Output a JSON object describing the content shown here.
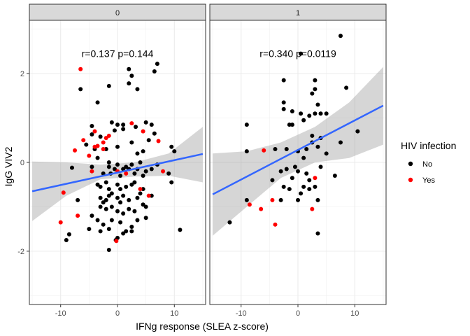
{
  "chart_data": {
    "type": "scatter",
    "xlabel": "IFNg response (SLEA z-score)",
    "ylabel": "IgG VIV2",
    "xlim": [
      -15.5,
      15.5
    ],
    "ylim": [
      -3.2,
      3.2
    ],
    "x_ticks": [
      -10,
      0,
      10
    ],
    "y_ticks": [
      -2,
      0,
      2
    ],
    "x_tick_labels": [
      "-10",
      "0",
      "10"
    ],
    "y_tick_labels": [
      "-2",
      "0",
      "2"
    ],
    "grid": true,
    "legend": {
      "title": "HIV infection",
      "position": "right",
      "entries": [
        {
          "label": "No",
          "color": "#000000"
        },
        {
          "label": "Yes",
          "color": "#ff0000"
        }
      ]
    },
    "panels": [
      {
        "strip": "0",
        "annotation": "r=0.137 p=0.144",
        "annotation_pos": [
          0,
          2.45
        ],
        "fit": {
          "x": [
            -15,
            15
          ],
          "y": [
            -0.65,
            0.19
          ]
        },
        "band_upper": [
          0.02,
          0.0,
          -0.05,
          0.0,
          0.2,
          0.8
        ],
        "band_lower": [
          -1.32,
          -0.75,
          -0.38,
          -0.32,
          -0.3,
          -0.45
        ],
        "band_x": [
          -15,
          -9,
          -3,
          3,
          9,
          15
        ],
        "no": [
          [
            -6.5,
            1.65
          ],
          [
            -3.5,
            1.35
          ],
          [
            -1.5,
            1.72
          ],
          [
            2,
            2.1
          ],
          [
            2,
            1.78
          ],
          [
            2.5,
            1.95
          ],
          [
            3.5,
            1.65
          ],
          [
            6.5,
            2.05
          ],
          [
            7,
            2.22
          ],
          [
            -4.5,
            0.82
          ],
          [
            -4.5,
            0.63
          ],
          [
            -3,
            0.58
          ],
          [
            0,
            0.85
          ],
          [
            -1,
            0.9
          ],
          [
            -0.5,
            0.72
          ],
          [
            1,
            0.85
          ],
          [
            1,
            0.75
          ],
          [
            3.2,
            0.8
          ],
          [
            5,
            0.9
          ],
          [
            6,
            0.85
          ],
          [
            6.5,
            0.65
          ],
          [
            -8,
            -0.12
          ],
          [
            -5.5,
            0.4
          ],
          [
            -4,
            0.3
          ],
          [
            -3.5,
            0.1
          ],
          [
            -2,
            0.3
          ],
          [
            -1.5,
            0.0
          ],
          [
            0,
            0.35
          ],
          [
            2.5,
            0.45
          ],
          [
            3.5,
            0.2
          ],
          [
            4.5,
            0.25
          ],
          [
            5.5,
            0.5
          ],
          [
            9.5,
            0.35
          ],
          [
            10,
            0.25
          ],
          [
            -4.5,
            -0.1
          ],
          [
            -2.5,
            -0.25
          ],
          [
            -1.5,
            -0.1
          ],
          [
            -1.2,
            -0.25
          ],
          [
            -0.5,
            -0.15
          ],
          [
            0,
            -0.05
          ],
          [
            0.5,
            -0.3
          ],
          [
            1,
            -0.15
          ],
          [
            1.5,
            -0.1
          ],
          [
            2,
            -0.15
          ],
          [
            2.5,
            -0.05
          ],
          [
            3,
            -0.25
          ],
          [
            3.5,
            -0.15
          ],
          [
            4,
            0.0
          ],
          [
            4.5,
            -0.3
          ],
          [
            5,
            -0.2
          ],
          [
            6,
            -0.15
          ],
          [
            7,
            -0.05
          ],
          [
            -3.5,
            -0.5
          ],
          [
            -3,
            -0.55
          ],
          [
            -2,
            -0.45
          ],
          [
            -1.5,
            -0.6
          ],
          [
            0,
            -0.5
          ],
          [
            0.5,
            -0.6
          ],
          [
            1.5,
            -0.55
          ],
          [
            2.5,
            -0.5
          ],
          [
            3,
            -0.45
          ],
          [
            4.5,
            -0.6
          ],
          [
            9,
            -0.25
          ],
          [
            9.5,
            -0.45
          ],
          [
            -3,
            -0.8
          ],
          [
            -2.5,
            -0.9
          ],
          [
            -2,
            -0.85
          ],
          [
            -1.5,
            -0.75
          ],
          [
            -1,
            -0.7
          ],
          [
            0,
            -0.8
          ],
          [
            0.5,
            -0.9
          ],
          [
            1,
            -0.75
          ],
          [
            2,
            -0.85
          ],
          [
            3.5,
            -0.8
          ],
          [
            4,
            -0.7
          ],
          [
            6,
            -0.75
          ],
          [
            -7,
            -0.85
          ],
          [
            -3,
            -1.0
          ],
          [
            -2,
            -1.05
          ],
          [
            -1,
            -1.0
          ],
          [
            0,
            -1.1
          ],
          [
            1,
            -1.15
          ],
          [
            2,
            -1.05
          ],
          [
            3,
            -1.1
          ],
          [
            4.5,
            -0.95
          ],
          [
            5,
            -1.0
          ],
          [
            -4.5,
            -1.2
          ],
          [
            -3.5,
            -1.3
          ],
          [
            -2.5,
            -1.4
          ],
          [
            -1,
            -1.3
          ],
          [
            0.5,
            -1.35
          ],
          [
            1.5,
            -1.55
          ],
          [
            2.5,
            -1.45
          ],
          [
            3.5,
            -1.3
          ],
          [
            5,
            -1.25
          ],
          [
            -9,
            -1.75
          ],
          [
            -8.5,
            -1.62
          ],
          [
            -5,
            -1.5
          ],
          [
            -3,
            -1.55
          ],
          [
            -1.5,
            -1.5
          ],
          [
            0,
            -1.7
          ],
          [
            1,
            -1.6
          ],
          [
            2.5,
            -1.55
          ],
          [
            -1.5,
            -1.97
          ],
          [
            -0.3,
            -1.75
          ],
          [
            11,
            -1.52
          ]
        ],
        "yes": [
          [
            -6.5,
            2.1
          ],
          [
            -4,
            0.7
          ],
          [
            -3.5,
            0.37
          ],
          [
            -2.5,
            0.45
          ],
          [
            -2,
            0.55
          ],
          [
            -1.5,
            0.6
          ],
          [
            4.5,
            0.7
          ],
          [
            2.5,
            0.88
          ],
          [
            -7.5,
            0.27
          ],
          [
            -6,
            0.5
          ],
          [
            -5,
            0.15
          ],
          [
            -4,
            0.35
          ],
          [
            -2.5,
            0.3
          ],
          [
            -4.5,
            -0.2
          ],
          [
            0,
            -0.2
          ],
          [
            1.5,
            -0.25
          ],
          [
            4,
            -0.6
          ],
          [
            5.5,
            -0.75
          ],
          [
            7.2,
            0.48
          ],
          [
            8,
            -0.2
          ],
          [
            -9.5,
            -0.68
          ],
          [
            -7,
            -1.2
          ],
          [
            -10,
            -1.35
          ],
          [
            -0.2,
            -1.77
          ]
        ]
      },
      {
        "strip": "1",
        "annotation": "r=0.340 p=0.0119",
        "annotation_pos": [
          0,
          2.45
        ],
        "fit": {
          "x": [
            -15,
            15
          ],
          "y": [
            -0.72,
            1.28
          ]
        },
        "band_upper": [
          0.2,
          0.25,
          0.45,
          0.8,
          1.35,
          2.15
        ],
        "band_lower": [
          -1.65,
          -1.0,
          -0.35,
          0.0,
          0.1,
          0.4
        ],
        "band_x": [
          -15,
          -9,
          -3,
          3,
          9,
          15
        ],
        "no": [
          [
            7.5,
            2.85
          ],
          [
            0.5,
            2.45
          ],
          [
            -2.5,
            1.85
          ],
          [
            -2.5,
            1.35
          ],
          [
            -2.5,
            1.2
          ],
          [
            3,
            1.85
          ],
          [
            3,
            1.65
          ],
          [
            2.5,
            1.55
          ],
          [
            3.5,
            1.3
          ],
          [
            3,
            1.1
          ],
          [
            8.5,
            1.68
          ],
          [
            -1,
            1.15
          ],
          [
            0.5,
            1.1
          ],
          [
            -1.5,
            0.85
          ],
          [
            -1,
            0.85
          ],
          [
            1,
            0.95
          ],
          [
            2,
            1.05
          ],
          [
            4,
            1.1
          ],
          [
            5,
            1.1
          ],
          [
            2.5,
            0.6
          ],
          [
            4,
            0.55
          ],
          [
            -9,
            0.85
          ],
          [
            -9,
            0.25
          ],
          [
            -4,
            0.3
          ],
          [
            -2,
            0.3
          ],
          [
            0,
            0.25
          ],
          [
            1,
            0.1
          ],
          [
            1.5,
            0.3
          ],
          [
            2.5,
            0.45
          ],
          [
            3.5,
            0.35
          ],
          [
            5,
            0.2
          ],
          [
            7.5,
            0.45
          ],
          [
            10.5,
            0.7
          ],
          [
            -4.5,
            -0.4
          ],
          [
            -3,
            -0.2
          ],
          [
            -2,
            -0.15
          ],
          [
            -1,
            -0.35
          ],
          [
            -0.5,
            -0.1
          ],
          [
            0,
            -0.2
          ],
          [
            1.5,
            -0.25
          ],
          [
            1,
            -0.55
          ],
          [
            2,
            -0.4
          ],
          [
            4,
            -0.1
          ],
          [
            -2.5,
            -0.55
          ],
          [
            -1.5,
            -0.6
          ],
          [
            0.5,
            -0.7
          ],
          [
            2,
            -0.6
          ],
          [
            3,
            -0.55
          ],
          [
            6.5,
            -0.3
          ],
          [
            -9,
            -0.85
          ],
          [
            -3,
            -0.85
          ],
          [
            0,
            -0.85
          ],
          [
            3.5,
            -0.85
          ],
          [
            -12,
            -1.35
          ],
          [
            3.5,
            -1.6
          ]
        ],
        "yes": [
          [
            -6,
            0.27
          ],
          [
            3,
            -0.35
          ],
          [
            -8.5,
            -0.95
          ],
          [
            -6.5,
            -1.05
          ],
          [
            -4.5,
            -0.85
          ],
          [
            2.5,
            -1.05
          ],
          [
            -4,
            -1.4
          ]
        ]
      }
    ]
  }
}
